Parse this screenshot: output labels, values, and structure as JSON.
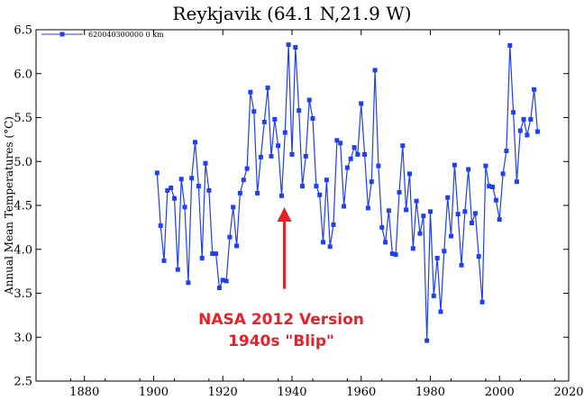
{
  "chart_data": {
    "type": "line",
    "title": "Reykjavik (64.1 N,21.9 W)",
    "xlabel": "",
    "ylabel": "Annual Mean Temperatures (°C)",
    "xlim": [
      1866,
      2020
    ],
    "ylim": [
      2.5,
      6.5
    ],
    "xticks": [
      1880,
      1900,
      1920,
      1940,
      1960,
      1980,
      2000,
      2020
    ],
    "yticks": [
      2.5,
      3.0,
      3.5,
      4.0,
      4.5,
      5.0,
      5.5,
      6.0,
      6.5
    ],
    "ytick_labels": [
      "2.5",
      "3.0",
      "3.5",
      "4.0",
      "4.5",
      "5.0",
      "5.5",
      "6.0",
      "6.5"
    ],
    "legend": {
      "label": "620040300000  0 km",
      "position": "top-left"
    },
    "series_color": "#1f3ff0",
    "annotation": {
      "lines": [
        "NASA 2012 Version",
        "1940s \"Blip\""
      ],
      "color": "#e8202a",
      "arrow_x": 1937.8,
      "arrow_from_y": 3.55,
      "arrow_to_y": 4.48
    },
    "series": [
      {
        "name": "620040300000  0 km",
        "x": [
          1901,
          1902,
          1903,
          1904,
          1905,
          1906,
          1907,
          1908,
          1909,
          1910,
          1911,
          1912,
          1913,
          1914,
          1915,
          1916,
          1917,
          1918,
          1919,
          1920,
          1921,
          1922,
          1923,
          1924,
          1925,
          1926,
          1927,
          1928,
          1929,
          1930,
          1931,
          1932,
          1933,
          1934,
          1935,
          1936,
          1937,
          1938,
          1939,
          1940,
          1941,
          1942,
          1943,
          1944,
          1945,
          1946,
          1947,
          1948,
          1949,
          1950,
          1951,
          1952,
          1953,
          1954,
          1955,
          1956,
          1957,
          1958,
          1959,
          1960,
          1961,
          1962,
          1963,
          1964,
          1965,
          1966,
          1967,
          1968,
          1969,
          1970,
          1971,
          1972,
          1973,
          1974,
          1975,
          1976,
          1977,
          1978,
          1979,
          1980,
          1981,
          1982,
          1983,
          1984,
          1985,
          1986,
          1987,
          1988,
          1989,
          1990,
          1991,
          1992,
          1993,
          1994,
          1995,
          1996,
          1997,
          1998,
          1999,
          2000,
          2001,
          2002,
          2003,
          2004,
          2005,
          2006,
          2007,
          2008,
          2009,
          2010,
          2011
        ],
        "y": [
          4.87,
          4.27,
          3.87,
          4.67,
          4.7,
          4.58,
          3.77,
          4.8,
          4.48,
          3.62,
          4.81,
          5.22,
          4.72,
          3.9,
          4.98,
          4.67,
          3.95,
          3.95,
          3.56,
          3.65,
          3.64,
          4.14,
          4.48,
          4.04,
          4.64,
          4.79,
          4.92,
          5.79,
          5.57,
          4.64,
          5.05,
          5.45,
          5.84,
          5.06,
          5.48,
          5.18,
          4.61,
          5.33,
          6.33,
          5.08,
          6.3,
          5.58,
          4.72,
          5.06,
          5.7,
          5.49,
          4.72,
          4.62,
          4.08,
          4.79,
          4.03,
          4.28,
          5.24,
          5.21,
          4.49,
          4.93,
          5.03,
          5.16,
          5.08,
          5.66,
          5.08,
          4.47,
          4.77,
          6.04,
          4.95,
          4.25,
          4.08,
          4.44,
          3.95,
          3.94,
          4.65,
          5.18,
          4.45,
          4.86,
          4.01,
          4.55,
          4.18,
          4.38,
          2.96,
          4.43,
          3.47,
          3.9,
          3.29,
          3.98,
          4.59,
          4.15,
          4.96,
          4.4,
          3.82,
          4.43,
          4.91,
          4.3,
          4.41,
          3.92,
          3.4,
          4.95,
          4.72,
          4.71,
          4.56,
          4.34,
          4.86,
          5.12,
          6.32,
          5.56,
          4.77,
          5.35,
          5.48,
          5.3,
          5.48,
          5.82,
          5.34
        ]
      }
    ]
  }
}
